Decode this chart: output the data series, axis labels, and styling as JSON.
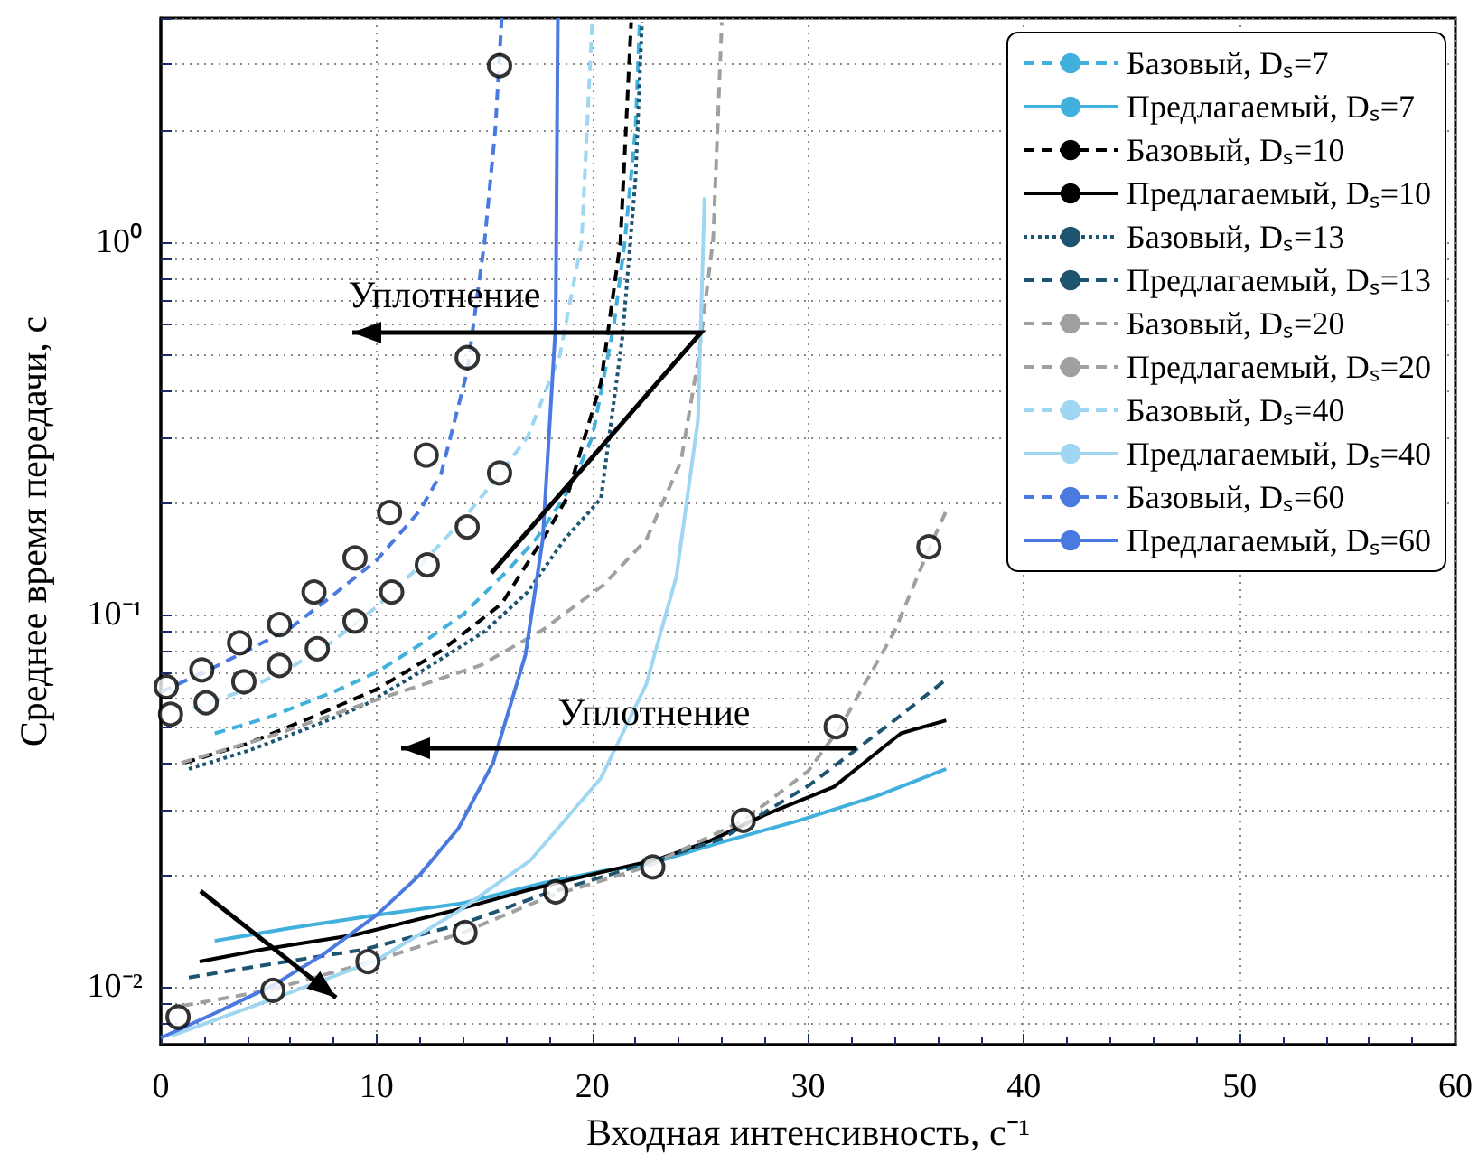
{
  "chart_data": {
    "type": "line",
    "xlabel": "Входная интенсивность, с⁻¹",
    "ylabel": "Среднее время передачи, с",
    "annotations": [
      "Уплотнение",
      "Уплотнение"
    ],
    "log": "y",
    "grid": true,
    "legend": "top right",
    "marker": "none",
    "xlim": [
      0,
      60
    ],
    "xticks": [
      0,
      10,
      20,
      30,
      40,
      50,
      60
    ],
    "ylim": [
      0.007,
      4
    ],
    "yticks": [
      {
        "value": 0.008,
        "label": null
      },
      {
        "value": 0.009,
        "label": null
      },
      {
        "value": 0.01,
        "label": "10⁻²"
      },
      {
        "value": 0.02,
        "label": null
      },
      {
        "value": 0.03,
        "label": null
      },
      {
        "value": 0.04,
        "label": null
      },
      {
        "value": 0.05,
        "label": null
      },
      {
        "value": 0.06,
        "label": null
      },
      {
        "value": 0.07,
        "label": null
      },
      {
        "value": 0.08,
        "label": null
      },
      {
        "value": 0.09,
        "label": null
      },
      {
        "value": 0.1,
        "label": "10⁻¹"
      },
      {
        "value": 0.2,
        "label": null
      },
      {
        "value": 0.3,
        "label": null
      },
      {
        "value": 0.4,
        "label": null
      },
      {
        "value": 0.5,
        "label": null
      },
      {
        "value": 0.6,
        "label": null
      },
      {
        "value": 0.7,
        "label": null
      },
      {
        "value": 0.8,
        "label": null
      },
      {
        "value": 0.9,
        "label": null
      },
      {
        "value": 1,
        "label": "10⁰"
      },
      {
        "value": 2,
        "label": null
      },
      {
        "value": 3,
        "label": null
      },
      {
        "value": 4,
        "label": null
      }
    ],
    "series": [
      {
        "name": "Базовый, Dₛ=7",
        "color": "#41b0dc",
        "line_style": "dashed",
        "x": [
          2.5,
          5,
          8,
          10,
          12,
          14,
          16,
          17.4,
          19,
          20,
          21,
          21.5,
          22,
          22.2
        ],
        "values": [
          0.048,
          0.053,
          0.062,
          0.07,
          0.083,
          0.1,
          0.13,
          0.16,
          0.22,
          0.3,
          0.6,
          1,
          2,
          4
        ]
      },
      {
        "name": "Предлагаемый, Dₛ=7",
        "color": "#41b0dc",
        "line_style": "solid",
        "x": [
          2.5,
          6,
          10,
          14,
          17.7,
          20.5,
          22.5,
          26,
          29.6,
          33.2,
          36.4
        ],
        "values": [
          0.0133,
          0.0144,
          0.0156,
          0.0168,
          0.019,
          0.0205,
          0.0213,
          0.0245,
          0.028,
          0.0326,
          0.0385
        ]
      },
      {
        "name": "Базовый, Dₛ=10",
        "color": "#000000",
        "line_style": "dashed",
        "x": [
          1.1,
          4,
          7,
          10,
          13,
          15.8,
          18,
          18.8,
          20.4,
          21.3,
          21.8
        ],
        "values": [
          0.04,
          0.045,
          0.053,
          0.063,
          0.08,
          0.107,
          0.17,
          0.205,
          0.42,
          1,
          3.9
        ]
      },
      {
        "name": "Предлагаемый, Dₛ=10",
        "color": "#000000",
        "line_style": "solid",
        "x": [
          1.8,
          4.7,
          9,
          13.5,
          17,
          20.2,
          23,
          25.4,
          28,
          31.2,
          34.3,
          36.4
        ],
        "values": [
          0.0117,
          0.0126,
          0.0138,
          0.016,
          0.0182,
          0.0202,
          0.022,
          0.0246,
          0.029,
          0.0345,
          0.048,
          0.052
        ]
      },
      {
        "name": "Базовый, Dₛ=13",
        "color": "#1d5570",
        "line_style": "dotted",
        "x": [
          1.3,
          4,
          7,
          9.4,
          12,
          15,
          17,
          18.7,
          20.4,
          21.4,
          22,
          22.3
        ],
        "values": [
          0.0385,
          0.043,
          0.05,
          0.057,
          0.07,
          0.09,
          0.115,
          0.159,
          0.205,
          0.56,
          1.48,
          3.9
        ]
      },
      {
        "name": "Предлагаемый, Dₛ=13",
        "color": "#1d5570",
        "line_style": "dashed",
        "x": [
          1.3,
          5,
          9.4,
          14,
          17.7,
          22,
          26,
          30.1,
          34,
          36.4
        ],
        "values": [
          0.0106,
          0.0115,
          0.0126,
          0.0148,
          0.0177,
          0.021,
          0.025,
          0.035,
          0.052,
          0.067
        ]
      },
      {
        "name": "Базовый, Dₛ=20",
        "color": "#a0a0a0",
        "line_style": "dashed",
        "x": [
          0.95,
          5,
          9.6,
          14.8,
          17.7,
          20.5,
          22.5,
          24.1,
          24.9,
          25.6,
          26
        ],
        "values": [
          0.04,
          0.047,
          0.058,
          0.073,
          0.091,
          0.12,
          0.159,
          0.257,
          0.48,
          1.02,
          3.9
        ]
      },
      {
        "name": "Предлагаемый, Dₛ=20",
        "color": "#a0a0a0",
        "line_style": "dashed",
        "x": [
          1,
          5,
          10,
          14,
          18,
          22.5,
          27,
          30,
          31.5,
          34,
          35.6,
          36.4
        ],
        "values": [
          0.0089,
          0.0098,
          0.0118,
          0.014,
          0.0175,
          0.021,
          0.028,
          0.038,
          0.05,
          0.09,
          0.15,
          0.19
        ]
      },
      {
        "name": "Базовый, Dₛ=40",
        "color": "#9fd6f2",
        "line_style": "dashed",
        "x": [
          1.5,
          4,
          6,
          8,
          10,
          12,
          14,
          15.5,
          17,
          18.5,
          19.5,
          20
        ],
        "values": [
          0.056,
          0.063,
          0.072,
          0.085,
          0.105,
          0.135,
          0.18,
          0.23,
          0.3,
          0.5,
          1,
          4
        ]
      },
      {
        "name": "Предлагаемый, Dₛ=40",
        "color": "#9fd6f2",
        "line_style": "solid",
        "x": [
          0.5,
          5,
          10,
          13.8,
          17.1,
          20.4,
          22.5,
          23.9,
          24.9,
          25.2
        ],
        "values": [
          0.0074,
          0.0092,
          0.0118,
          0.016,
          0.0218,
          0.0364,
          0.065,
          0.127,
          0.335,
          1.32
        ]
      },
      {
        "name": "Базовый, Dₛ=60",
        "color": "#4a7ae0",
        "line_style": "dashed",
        "x": [
          0,
          2,
          4,
          6,
          8,
          10,
          12,
          13,
          14.2,
          15,
          15.5,
          15.8
        ],
        "values": [
          0.062,
          0.07,
          0.08,
          0.092,
          0.113,
          0.14,
          0.19,
          0.24,
          0.45,
          1,
          2,
          4
        ]
      },
      {
        "name": "Предлагаемый, Dₛ=60",
        "color": "#4a7ae0",
        "line_style": "solid",
        "x": [
          0,
          2.5,
          5.2,
          7.5,
          10,
          12,
          13.8,
          15.4,
          16.9,
          17.7,
          18.3,
          18.4
        ],
        "values": [
          0.0073,
          0.0085,
          0.0101,
          0.0122,
          0.0156,
          0.02,
          0.0267,
          0.04,
          0.078,
          0.159,
          0.6,
          4
        ]
      },
      {
        "type": "scatter",
        "marker": "circle",
        "color": "#000000",
        "x": [
          0.25,
          1.9,
          3.65,
          5.5,
          7.1,
          9,
          10.6,
          12.3,
          14.2,
          15.7,
          0.45,
          2.1,
          3.85,
          5.5,
          7.25,
          9,
          10.7,
          12.35,
          14.2,
          15.7,
          0.8,
          5.2,
          9.6,
          14.1,
          18.3,
          22.8,
          27,
          31.3,
          35.6
        ],
        "values": [
          0.064,
          0.071,
          0.084,
          0.094,
          0.115,
          0.142,
          0.188,
          0.268,
          0.49,
          2.98,
          0.054,
          0.058,
          0.066,
          0.073,
          0.081,
          0.096,
          0.115,
          0.136,
          0.172,
          0.24,
          0.0083,
          0.0098,
          0.0117,
          0.014,
          0.018,
          0.021,
          0.028,
          0.05,
          0.152
        ]
      }
    ]
  }
}
